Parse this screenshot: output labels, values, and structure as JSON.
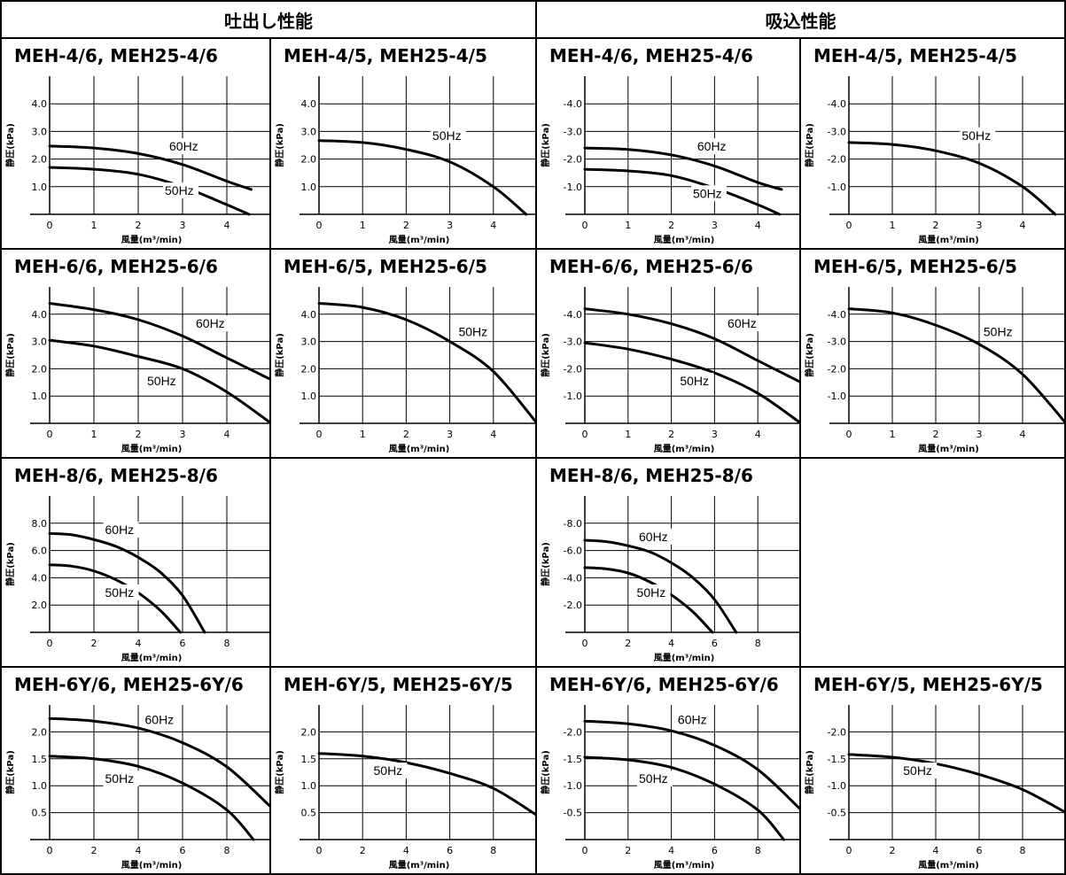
{
  "headers": {
    "discharge": "吐出し性能",
    "suction": "吸込性能"
  },
  "axis_labels": {
    "xlabel": "風量(m³/min)",
    "ylabel": "静圧(kPa)"
  },
  "colors": {
    "line": "#000000",
    "background": "#ffffff"
  },
  "chart_data": [
    {
      "type": "line",
      "title": "MEH-4/6, MEH25-4/6",
      "xlabel": "風量(m³/min)",
      "ylabel": "静圧(kPa)",
      "xlim": [
        0,
        5
      ],
      "ylim": [
        0,
        5
      ],
      "xticks": [
        0,
        1,
        2,
        3,
        4
      ],
      "yticks": [
        1.0,
        2.0,
        3.0,
        4.0
      ],
      "ytick_labels": [
        "1.0",
        "2.0",
        "3.0",
        "4.0"
      ],
      "grid": true,
      "series": [
        {
          "name": "60Hz",
          "label_at": [
            2.7,
            2.3
          ],
          "points": [
            [
              0,
              2.47
            ],
            [
              1,
              2.4
            ],
            [
              2,
              2.2
            ],
            [
              3,
              1.8
            ],
            [
              4,
              1.2
            ],
            [
              4.55,
              0.9
            ]
          ]
        },
        {
          "name": "50Hz",
          "label_at": [
            2.6,
            0.7
          ],
          "points": [
            [
              0,
              1.7
            ],
            [
              1,
              1.63
            ],
            [
              2,
              1.45
            ],
            [
              3,
              1.0
            ],
            [
              4,
              0.35
            ],
            [
              4.5,
              0
            ]
          ]
        }
      ]
    },
    {
      "type": "line",
      "title": "MEH-4/5, MEH25-4/5",
      "xlabel": "風量(m³/min)",
      "ylabel": "静圧(kPa)",
      "xlim": [
        0,
        5
      ],
      "ylim": [
        0,
        5
      ],
      "xticks": [
        0,
        1,
        2,
        3,
        4
      ],
      "yticks": [
        1.0,
        2.0,
        3.0,
        4.0
      ],
      "ytick_labels": [
        "1.0",
        "2.0",
        "3.0",
        "4.0"
      ],
      "grid": true,
      "series": [
        {
          "name": "50Hz",
          "label_at": [
            2.6,
            2.7
          ],
          "points": [
            [
              0,
              2.67
            ],
            [
              1,
              2.6
            ],
            [
              2,
              2.35
            ],
            [
              3,
              1.9
            ],
            [
              4,
              1.0
            ],
            [
              4.75,
              0
            ]
          ]
        }
      ]
    },
    {
      "type": "line",
      "title": "MEH-4/6, MEH25-4/6",
      "xlabel": "風量(m³/min)",
      "ylabel": "静圧(kPa)",
      "xlim": [
        0,
        5
      ],
      "ylim": [
        0,
        5
      ],
      "xticks": [
        0,
        1,
        2,
        3,
        4
      ],
      "yticks": [
        1.0,
        2.0,
        3.0,
        4.0
      ],
      "ytick_labels": [
        "-1.0",
        "-2.0",
        "-3.0",
        "-4.0"
      ],
      "grid": true,
      "series": [
        {
          "name": "60Hz",
          "label_at": [
            2.6,
            2.3
          ],
          "points": [
            [
              0,
              2.4
            ],
            [
              1,
              2.35
            ],
            [
              2,
              2.15
            ],
            [
              3,
              1.75
            ],
            [
              4,
              1.15
            ],
            [
              4.55,
              0.9
            ]
          ]
        },
        {
          "name": "50Hz",
          "label_at": [
            2.5,
            0.6
          ],
          "points": [
            [
              0,
              1.63
            ],
            [
              1,
              1.57
            ],
            [
              2,
              1.4
            ],
            [
              3,
              0.95
            ],
            [
              4,
              0.35
            ],
            [
              4.5,
              0
            ]
          ]
        }
      ]
    },
    {
      "type": "line",
      "title": "MEH-4/5, MEH25-4/5",
      "xlabel": "風量(m³/min)",
      "ylabel": "静圧(kPa)",
      "xlim": [
        0,
        5
      ],
      "ylim": [
        0,
        5
      ],
      "xticks": [
        0,
        1,
        2,
        3,
        4
      ],
      "yticks": [
        1.0,
        2.0,
        3.0,
        4.0
      ],
      "ytick_labels": [
        "-1.0",
        "-2.0",
        "-3.0",
        "-4.0"
      ],
      "grid": true,
      "series": [
        {
          "name": "50Hz",
          "label_at": [
            2.6,
            2.7
          ],
          "points": [
            [
              0,
              2.6
            ],
            [
              1,
              2.53
            ],
            [
              2,
              2.3
            ],
            [
              3,
              1.85
            ],
            [
              4,
              1.0
            ],
            [
              4.75,
              0
            ]
          ]
        }
      ]
    },
    {
      "type": "line",
      "title": "MEH-6/6, MEH25-6/6",
      "xlabel": "風量(m³/min)",
      "ylabel": "静圧(kPa)",
      "xlim": [
        0,
        5
      ],
      "ylim": [
        0,
        5
      ],
      "xticks": [
        0,
        1,
        2,
        3,
        4
      ],
      "yticks": [
        1.0,
        2.0,
        3.0,
        4.0
      ],
      "ytick_labels": [
        "1.0",
        "2.0",
        "3.0",
        "4.0"
      ],
      "grid": true,
      "series": [
        {
          "name": "60Hz",
          "label_at": [
            3.3,
            3.5
          ],
          "points": [
            [
              0,
              4.4
            ],
            [
              1,
              4.17
            ],
            [
              2,
              3.8
            ],
            [
              3,
              3.2
            ],
            [
              4,
              2.4
            ],
            [
              5,
              1.6
            ]
          ]
        },
        {
          "name": "50Hz",
          "label_at": [
            2.2,
            1.4
          ],
          "points": [
            [
              0,
              3.05
            ],
            [
              1,
              2.83
            ],
            [
              2,
              2.45
            ],
            [
              3,
              2.0
            ],
            [
              4,
              1.15
            ],
            [
              5,
              0
            ]
          ]
        }
      ]
    },
    {
      "type": "line",
      "title": "MEH-6/5, MEH25-6/5",
      "xlabel": "風量(m³/min)",
      "ylabel": "静圧(kPa)",
      "xlim": [
        0,
        5
      ],
      "ylim": [
        0,
        5
      ],
      "xticks": [
        0,
        1,
        2,
        3,
        4
      ],
      "yticks": [
        1.0,
        2.0,
        3.0,
        4.0
      ],
      "ytick_labels": [
        "1.0",
        "2.0",
        "3.0",
        "4.0"
      ],
      "grid": true,
      "series": [
        {
          "name": "50Hz",
          "label_at": [
            3.2,
            3.2
          ],
          "points": [
            [
              0,
              4.4
            ],
            [
              1,
              4.25
            ],
            [
              2,
              3.8
            ],
            [
              3,
              3.0
            ],
            [
              4,
              1.9
            ],
            [
              5,
              0
            ]
          ]
        }
      ]
    },
    {
      "type": "line",
      "title": "MEH-6/6, MEH25-6/6",
      "xlabel": "風量(m³/min)",
      "ylabel": "静圧(kPa)",
      "xlim": [
        0,
        5
      ],
      "ylim": [
        0,
        5
      ],
      "xticks": [
        0,
        1,
        2,
        3,
        4
      ],
      "yticks": [
        1.0,
        2.0,
        3.0,
        4.0
      ],
      "ytick_labels": [
        "-1.0",
        "-2.0",
        "-3.0",
        "-4.0"
      ],
      "grid": true,
      "series": [
        {
          "name": "60Hz",
          "label_at": [
            3.3,
            3.5
          ],
          "points": [
            [
              0,
              4.2
            ],
            [
              1,
              4.0
            ],
            [
              2,
              3.65
            ],
            [
              3,
              3.1
            ],
            [
              4,
              2.3
            ],
            [
              5,
              1.5
            ]
          ]
        },
        {
          "name": "50Hz",
          "label_at": [
            2.2,
            1.4
          ],
          "points": [
            [
              0,
              2.95
            ],
            [
              1,
              2.72
            ],
            [
              2,
              2.35
            ],
            [
              3,
              1.85
            ],
            [
              4,
              1.1
            ],
            [
              5,
              0
            ]
          ]
        }
      ]
    },
    {
      "type": "line",
      "title": "MEH-6/5, MEH25-6/5",
      "xlabel": "風量(m³/min)",
      "ylabel": "静圧(kPa)",
      "xlim": [
        0,
        5
      ],
      "ylim": [
        0,
        5
      ],
      "xticks": [
        0,
        1,
        2,
        3,
        4
      ],
      "yticks": [
        1.0,
        2.0,
        3.0,
        4.0
      ],
      "ytick_labels": [
        "-1.0",
        "-2.0",
        "-3.0",
        "-4.0"
      ],
      "grid": true,
      "series": [
        {
          "name": "50Hz",
          "label_at": [
            3.1,
            3.2
          ],
          "points": [
            [
              0,
              4.2
            ],
            [
              1,
              4.05
            ],
            [
              2,
              3.6
            ],
            [
              3,
              2.9
            ],
            [
              4,
              1.8
            ],
            [
              5,
              0
            ]
          ]
        }
      ]
    },
    {
      "type": "line",
      "title": "MEH-8/6, MEH25-8/6",
      "xlabel": "風量(m³/min)",
      "ylabel": "静圧(kPa)",
      "xlim": [
        0,
        10
      ],
      "ylim": [
        0,
        10
      ],
      "xticks": [
        0,
        2,
        4,
        6,
        8
      ],
      "yticks": [
        2.0,
        4.0,
        6.0,
        8.0
      ],
      "ytick_labels": [
        "2.0",
        "4.0",
        "6.0",
        "8.0"
      ],
      "grid": true,
      "series": [
        {
          "name": "60Hz",
          "label_at": [
            2.5,
            7.2
          ],
          "points": [
            [
              0,
              7.25
            ],
            [
              1,
              7.15
            ],
            [
              2,
              6.8
            ],
            [
              3,
              6.3
            ],
            [
              4,
              5.5
            ],
            [
              5,
              4.4
            ],
            [
              6,
              2.7
            ],
            [
              7,
              0
            ]
          ]
        },
        {
          "name": "50Hz",
          "label_at": [
            2.5,
            2.6
          ],
          "points": [
            [
              0,
              4.95
            ],
            [
              1,
              4.85
            ],
            [
              2,
              4.5
            ],
            [
              3,
              3.85
            ],
            [
              4,
              2.9
            ],
            [
              5,
              1.6
            ],
            [
              5.9,
              0
            ]
          ]
        }
      ]
    },
    {
      "type": "line",
      "title": "MEH-8/6, MEH25-8/6",
      "xlabel": "風量(m³/min)",
      "ylabel": "静圧(kPa)",
      "xlim": [
        0,
        10
      ],
      "ylim": [
        0,
        10
      ],
      "xticks": [
        0,
        2,
        4,
        6,
        8
      ],
      "yticks": [
        2.0,
        4.0,
        6.0,
        8.0
      ],
      "ytick_labels": [
        "-2.0",
        "-4.0",
        "-6.0",
        "-8.0"
      ],
      "grid": true,
      "series": [
        {
          "name": "60Hz",
          "label_at": [
            2.5,
            6.7
          ],
          "points": [
            [
              0,
              6.75
            ],
            [
              1,
              6.65
            ],
            [
              2,
              6.35
            ],
            [
              3,
              5.9
            ],
            [
              4,
              5.1
            ],
            [
              5,
              4.0
            ],
            [
              6,
              2.4
            ],
            [
              7,
              0
            ]
          ]
        },
        {
          "name": "50Hz",
          "label_at": [
            2.4,
            2.6
          ],
          "points": [
            [
              0,
              4.75
            ],
            [
              1,
              4.65
            ],
            [
              2,
              4.35
            ],
            [
              3,
              3.7
            ],
            [
              4,
              2.75
            ],
            [
              5,
              1.5
            ],
            [
              5.9,
              0
            ]
          ]
        }
      ]
    },
    {
      "type": "line",
      "title": "MEH-6Y/6, MEH25-6Y/6",
      "xlabel": "風量(m³/min)",
      "ylabel": "静圧(kPa)",
      "xlim": [
        0,
        10
      ],
      "ylim": [
        0,
        2.5
      ],
      "xticks": [
        0,
        2,
        4,
        6,
        8
      ],
      "yticks": [
        0.5,
        1.0,
        1.5,
        2.0
      ],
      "ytick_labels": [
        "0.5",
        "1.0",
        "1.5",
        "2.0"
      ],
      "grid": true,
      "series": [
        {
          "name": "60Hz",
          "label_at": [
            4.3,
            2.15
          ],
          "points": [
            [
              0,
              2.25
            ],
            [
              2,
              2.2
            ],
            [
              4,
              2.07
            ],
            [
              6,
              1.8
            ],
            [
              8,
              1.35
            ],
            [
              10,
              0.6
            ]
          ]
        },
        {
          "name": "50Hz",
          "label_at": [
            2.5,
            1.05
          ],
          "points": [
            [
              0,
              1.55
            ],
            [
              2,
              1.5
            ],
            [
              4,
              1.36
            ],
            [
              6,
              1.05
            ],
            [
              8,
              0.55
            ],
            [
              9.2,
              0
            ]
          ]
        }
      ]
    },
    {
      "type": "line",
      "title": "MEH-6Y/5, MEH25-6Y/5",
      "xlabel": "風量(m³/min)",
      "ylabel": "静圧(kPa)",
      "xlim": [
        0,
        10
      ],
      "ylim": [
        0,
        2.5
      ],
      "xticks": [
        0,
        2,
        4,
        6,
        8
      ],
      "yticks": [
        0.5,
        1.0,
        1.5,
        2.0
      ],
      "ytick_labels": [
        "0.5",
        "1.0",
        "1.5",
        "2.0"
      ],
      "grid": true,
      "series": [
        {
          "name": "50Hz",
          "label_at": [
            2.5,
            1.2
          ],
          "points": [
            [
              0,
              1.6
            ],
            [
              2,
              1.55
            ],
            [
              4,
              1.43
            ],
            [
              6,
              1.23
            ],
            [
              8,
              0.95
            ],
            [
              10,
              0.45
            ]
          ]
        }
      ]
    },
    {
      "type": "line",
      "title": "MEH-6Y/6, MEH25-6Y/6",
      "xlabel": "風量(m³/min)",
      "ylabel": "静圧(kPa)",
      "xlim": [
        0,
        10
      ],
      "ylim": [
        0,
        2.5
      ],
      "xticks": [
        0,
        2,
        4,
        6,
        8
      ],
      "yticks": [
        0.5,
        1.0,
        1.5,
        2.0
      ],
      "ytick_labels": [
        "-0.5",
        "-1.0",
        "-1.5",
        "-2.0"
      ],
      "grid": true,
      "series": [
        {
          "name": "60Hz",
          "label_at": [
            4.3,
            2.15
          ],
          "points": [
            [
              0,
              2.2
            ],
            [
              2,
              2.15
            ],
            [
              4,
              2.02
            ],
            [
              6,
              1.75
            ],
            [
              8,
              1.3
            ],
            [
              10,
              0.55
            ]
          ]
        },
        {
          "name": "50Hz",
          "label_at": [
            2.5,
            1.05
          ],
          "points": [
            [
              0,
              1.53
            ],
            [
              2,
              1.48
            ],
            [
              4,
              1.34
            ],
            [
              6,
              1.03
            ],
            [
              8,
              0.55
            ],
            [
              9.2,
              0
            ]
          ]
        }
      ]
    },
    {
      "type": "line",
      "title": "MEH-6Y/5, MEH25-6Y/5",
      "xlabel": "風量(m³/min)",
      "ylabel": "静圧(kPa)",
      "xlim": [
        0,
        10
      ],
      "ylim": [
        0,
        2.5
      ],
      "xticks": [
        0,
        2,
        4,
        6,
        8
      ],
      "yticks": [
        0.5,
        1.0,
        1.5,
        2.0
      ],
      "ytick_labels": [
        "-0.5",
        "-1.0",
        "-1.5",
        "-2.0"
      ],
      "grid": true,
      "series": [
        {
          "name": "50Hz",
          "label_at": [
            2.5,
            1.2
          ],
          "points": [
            [
              0,
              1.58
            ],
            [
              2,
              1.53
            ],
            [
              4,
              1.41
            ],
            [
              6,
              1.21
            ],
            [
              8,
              0.93
            ],
            [
              10,
              0.5
            ]
          ]
        }
      ]
    }
  ]
}
